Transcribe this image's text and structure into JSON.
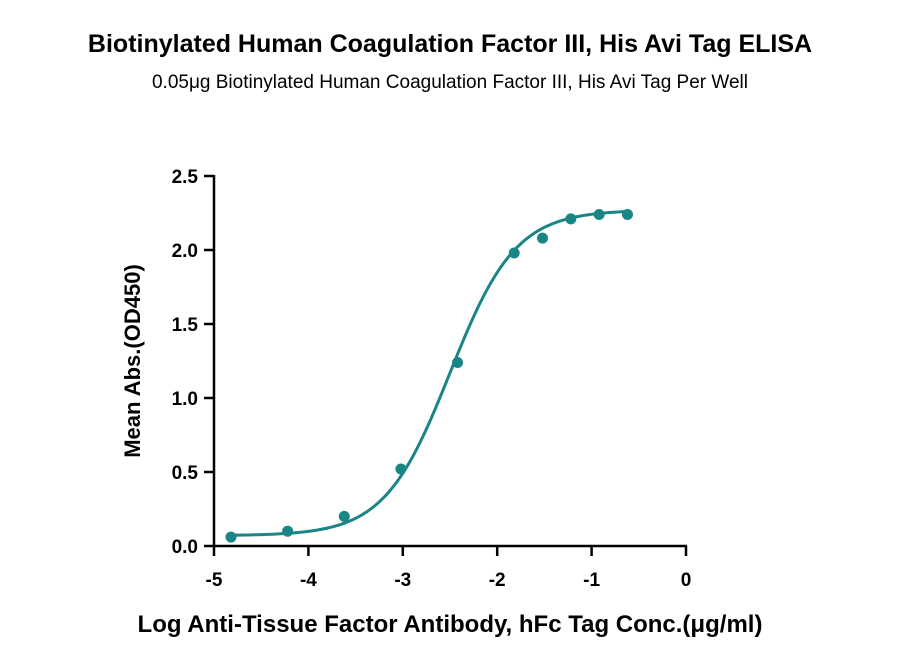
{
  "chart_data": {
    "type": "scatter",
    "title": "Biotinylated  Human Coagulation Factor III, His Avi Tag ELISA",
    "subtitle": "0.05μg Biotinylated  Human Coagulation Factor III, His Avi Tag Per Well",
    "xlabel": "Log Anti-Tissue Factor Antibody, hFc Tag Conc.(μg/ml)",
    "ylabel": "Mean Abs.(OD450)",
    "xlim": [
      -5,
      0
    ],
    "ylim": [
      0,
      2.5
    ],
    "x_ticks": [
      "-5",
      "-4",
      "-3",
      "-2",
      "-1",
      "0"
    ],
    "y_ticks": [
      "0.0",
      "0.5",
      "1.0",
      "1.5",
      "2.0",
      "2.5"
    ],
    "grid": false,
    "color": "#1a8585",
    "series": [
      {
        "x": [
          -4.82,
          -4.22,
          -3.62,
          -3.02,
          -2.42,
          -1.82,
          -1.52,
          -1.22,
          -0.92,
          -0.62
        ],
        "y": [
          0.06,
          0.1,
          0.2,
          0.52,
          1.24,
          1.98,
          2.08,
          2.21,
          2.24,
          2.24
        ]
      }
    ],
    "fit": {
      "model": "4PL",
      "bottom": 0.07,
      "top": 2.27,
      "log_ec50": -2.5,
      "hill_slope": 1.25
    }
  }
}
